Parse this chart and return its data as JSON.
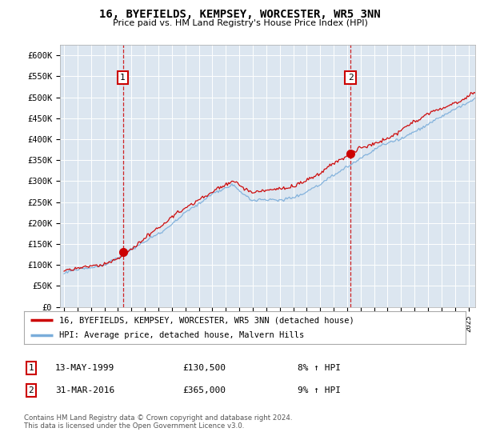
{
  "title": "16, BYEFIELDS, KEMPSEY, WORCESTER, WR5 3NN",
  "subtitle": "Price paid vs. HM Land Registry's House Price Index (HPI)",
  "plot_bg_color": "#dce6f0",
  "ylim": [
    0,
    625000
  ],
  "yticks": [
    0,
    50000,
    100000,
    150000,
    200000,
    250000,
    300000,
    350000,
    400000,
    450000,
    500000,
    550000,
    600000
  ],
  "ytick_labels": [
    "£0",
    "£50K",
    "£100K",
    "£150K",
    "£200K",
    "£250K",
    "£300K",
    "£350K",
    "£400K",
    "£450K",
    "£500K",
    "£550K",
    "£600K"
  ],
  "sale1_date": 1999.36,
  "sale1_price": 130500,
  "sale2_date": 2016.25,
  "sale2_price": 365000,
  "legend_line1": "16, BYEFIELDS, KEMPSEY, WORCESTER, WR5 3NN (detached house)",
  "legend_line2": "HPI: Average price, detached house, Malvern Hills",
  "table_row1": [
    "1",
    "13-MAY-1999",
    "£130,500",
    "8% ↑ HPI"
  ],
  "table_row2": [
    "2",
    "31-MAR-2016",
    "£365,000",
    "9% ↑ HPI"
  ],
  "footnote": "Contains HM Land Registry data © Crown copyright and database right 2024.\nThis data is licensed under the Open Government Licence v3.0.",
  "line_color_red": "#cc0000",
  "line_color_blue": "#7aadda",
  "vline_color": "#cc0000",
  "xlim_start": 1995.0,
  "xlim_end": 2025.5
}
